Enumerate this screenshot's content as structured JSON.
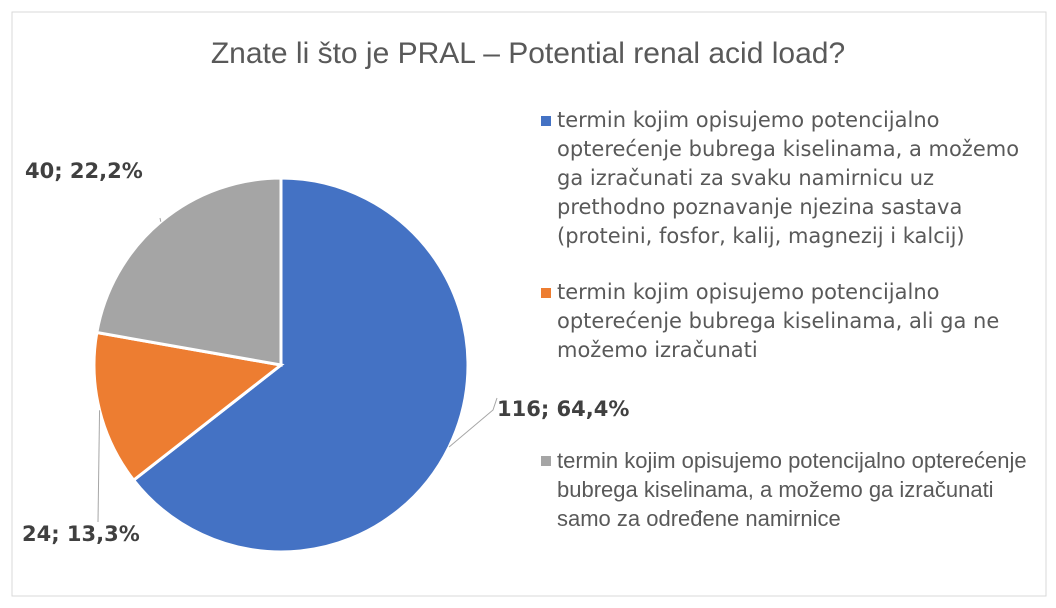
{
  "chart_data": {
    "type": "pie",
    "title": "Znate li što je PRAL – Potential renal acid load?",
    "categories": [
      "termin kojim opisujemo potencijalno opterećenje bubrega kiselinama, a možemo ga izračunati za svaku namirnicu uz prethodno poznavanje njezina sastava (proteini, fosfor, kalij, magnezij i kalcij)",
      "termin kojim opisujemo potencijalno opterećenje bubrega kiselinama, ali ga ne možemo izračunati",
      "termin kojim opisujemo potencijalno opterećenje bubrega kiselinama, a možemo ga izračunati samo za određene namirnice"
    ],
    "values": [
      116,
      24,
      40
    ],
    "value_labels": [
      "116; 64,4%",
      "24; 13,3%",
      "40; 22,2%"
    ],
    "colors": [
      "#4472c4",
      "#ed7d31",
      "#a5a5a5"
    ],
    "legend": "right"
  }
}
